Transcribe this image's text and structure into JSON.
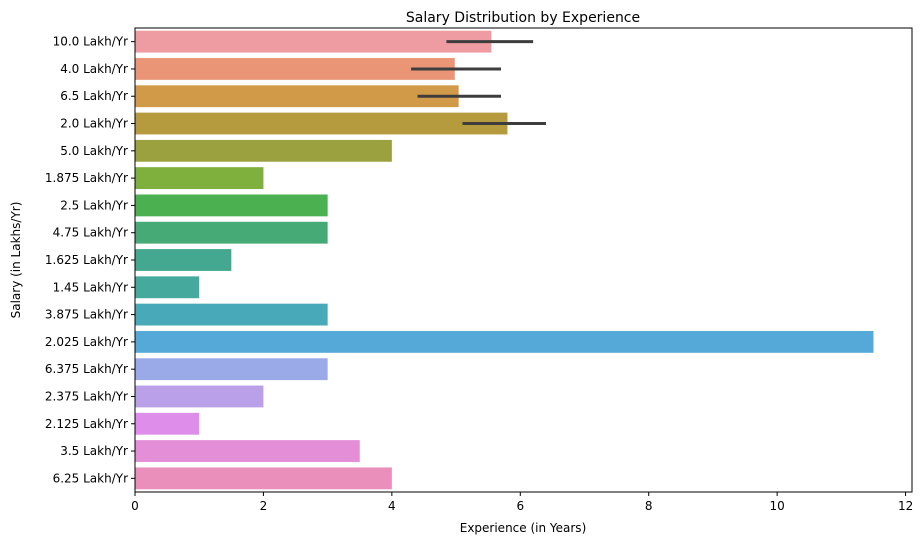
{
  "chart_data": {
    "type": "bar",
    "orientation": "horizontal",
    "title": "Salary Distribution by Experience",
    "xlabel": "Experience (in Years)",
    "ylabel": "Salary (in Lakhs/Yr)",
    "xlim": [
      0,
      12.1
    ],
    "xticks": [
      "0",
      "2",
      "4",
      "6",
      "8",
      "10",
      "12"
    ],
    "grid": false,
    "legend": "none",
    "categories": [
      "10.0 Lakh/Yr",
      "4.0 Lakh/Yr",
      "6.5 Lakh/Yr",
      "2.0 Lakh/Yr",
      "5.0 Lakh/Yr",
      "1.875 Lakh/Yr",
      "2.5 Lakh/Yr",
      "4.75 Lakh/Yr",
      "1.625 Lakh/Yr",
      "1.45 Lakh/Yr",
      "3.875 Lakh/Yr",
      "2.025 Lakh/Yr",
      "6.375 Lakh/Yr",
      "2.375 Lakh/Yr",
      "2.125 Lakh/Yr",
      "3.5 Lakh/Yr",
      "6.25 Lakh/Yr"
    ],
    "values": [
      5.55,
      4.98,
      5.04,
      5.8,
      4.0,
      2.0,
      3.0,
      3.0,
      1.5,
      1.0,
      3.0,
      11.5,
      3.0,
      2.0,
      1.0,
      3.5,
      4.0
    ],
    "error_low": [
      4.85,
      4.3,
      4.4,
      5.1,
      null,
      null,
      null,
      null,
      null,
      null,
      null,
      null,
      null,
      null,
      null,
      null,
      null
    ],
    "error_high": [
      6.2,
      5.7,
      5.7,
      6.4,
      null,
      null,
      null,
      null,
      null,
      null,
      null,
      null,
      null,
      null,
      null,
      null,
      null
    ],
    "colors": [
      "#ef9ba2",
      "#ea9676",
      "#d19a48",
      "#b59b3e",
      "#9ca140",
      "#7faf3c",
      "#4bb050",
      "#46aa77",
      "#44a890",
      "#45a99d",
      "#48aab9",
      "#55a9d9",
      "#9aaae8",
      "#b9a0e8",
      "#de8eea",
      "#e58ed8",
      "#ea8fbc"
    ]
  }
}
